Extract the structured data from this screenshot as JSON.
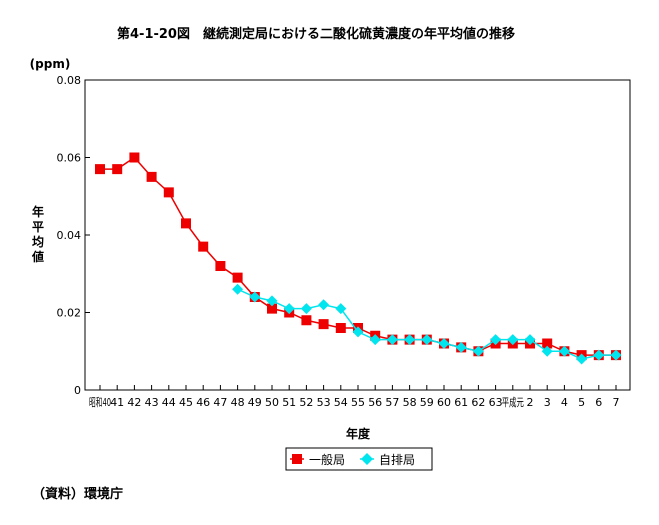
{
  "title": "第4-1-20図　継続測定局における二酸化硫黄濃度の年平均値の推移",
  "source": "（資料）環境庁",
  "chart_data": {
    "type": "line",
    "title": "第4-1-20図　継続測定局における二酸化硫黄濃度の年平均値の推移",
    "y_unit": "(ppm)",
    "ylabel": "年平均値",
    "xlabel": "年度",
    "ylim": [
      0,
      0.08
    ],
    "y_ticks": [
      "0",
      "0.02",
      "0.04",
      "0.06",
      "0.08"
    ],
    "y_tick_values": [
      0,
      0.02,
      0.04,
      0.06,
      0.08
    ],
    "grid": false,
    "legend_position": "bottom-center",
    "categories": [
      "昭和40",
      "41",
      "42",
      "43",
      "44",
      "45",
      "46",
      "47",
      "48",
      "49",
      "50",
      "51",
      "52",
      "53",
      "54",
      "55",
      "56",
      "57",
      "58",
      "59",
      "60",
      "61",
      "62",
      "63",
      "平成元",
      "2",
      "3",
      "4",
      "5",
      "6",
      "7"
    ],
    "series": [
      {
        "name": "一般局",
        "color": "#ee0000",
        "marker": "square",
        "values": [
          0.057,
          0.057,
          0.06,
          0.055,
          0.051,
          0.043,
          0.037,
          0.032,
          0.029,
          0.024,
          0.021,
          0.02,
          0.018,
          0.017,
          0.016,
          0.016,
          0.014,
          0.013,
          0.013,
          0.013,
          0.012,
          0.011,
          0.01,
          0.012,
          0.012,
          0.012,
          0.012,
          0.01,
          0.009,
          0.009,
          0.009
        ]
      },
      {
        "name": "自排局",
        "color": "#00e5ee",
        "marker": "diamond",
        "values": [
          null,
          null,
          null,
          null,
          null,
          null,
          null,
          null,
          0.026,
          0.024,
          0.023,
          0.021,
          0.021,
          0.022,
          0.021,
          0.015,
          0.013,
          0.013,
          0.013,
          0.013,
          0.012,
          0.011,
          0.01,
          0.013,
          0.013,
          0.013,
          0.01,
          0.01,
          0.008,
          0.009,
          0.009
        ]
      }
    ]
  }
}
